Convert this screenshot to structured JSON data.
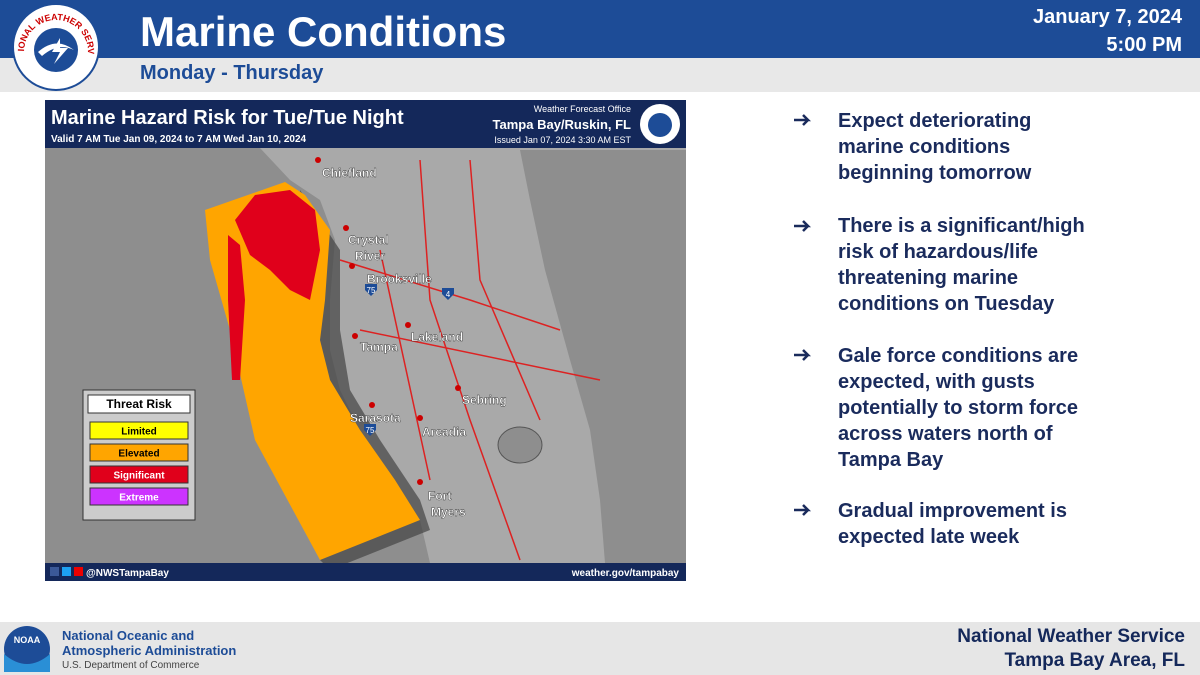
{
  "header": {
    "logo_text": "NATIONAL WEATHER SERVICE",
    "title": "Marine Conditions",
    "subtitle": "Monday - Thursday",
    "date": "January 7, 2024",
    "time": "5:00 PM"
  },
  "map": {
    "title": "Marine Hazard Risk for Tue/Tue Night",
    "valid": "Valid 7 AM Tue Jan 09, 2024 to 7 AM Wed Jan 10, 2024",
    "office_label": "Weather Forecast Office",
    "office": "Tampa Bay/Ruskin, FL",
    "issued": "Issued Jan 07, 2024 3:30 AM EST",
    "cities": [
      [
        "Chiefland"
      ],
      [
        "Crystal",
        "River"
      ],
      [
        "Brooksville"
      ],
      [
        "Tampa"
      ],
      [
        "Lakeland"
      ],
      [
        "Sebring"
      ],
      [
        "Sarasota"
      ],
      [
        "Arcadia"
      ],
      [
        "Fort",
        "Myers"
      ]
    ],
    "interstates": [
      "75",
      "4",
      "75"
    ],
    "legend": {
      "title": "Threat Risk",
      "items": [
        {
          "label": "Limited",
          "color": "#ffff00"
        },
        {
          "label": "Elevated",
          "color": "#ffa500"
        },
        {
          "label": "Significant",
          "color": "#e0001b"
        },
        {
          "label": "Extreme",
          "color": "#cc33ff"
        }
      ]
    },
    "social": "@NWSTampaBay",
    "url": "weather.gov/tampabay"
  },
  "bullets": [
    "Expect deteriorating marine conditions beginning tomorrow",
    "There is a significant/high risk of hazardous/life threatening marine conditions on Tuesday",
    "Gale force conditions are expected, with gusts potentially to storm force across waters north of Tampa Bay",
    "Gradual improvement is expected late week"
  ],
  "footer": {
    "noaa_logo": "NOAA",
    "noaa_name": [
      "National Oceanic and",
      "Atmospheric Administration"
    ],
    "department": "U.S. Department of Commerce",
    "office": [
      "National Weather Service",
      "Tampa Bay Area, FL"
    ]
  }
}
